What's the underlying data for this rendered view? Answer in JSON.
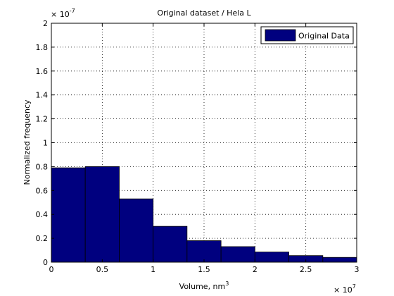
{
  "chart_data": {
    "type": "bar",
    "title": "Original dataset / Hela L",
    "xlabel": "Volume, nm",
    "xlabel_superscript": "3",
    "ylabel": "Normalized frequency",
    "x_multiplier": "× 10",
    "x_multiplier_exponent": "7",
    "y_multiplier": "× 10",
    "y_multiplier_exponent": "-7",
    "xlim": [
      0,
      3
    ],
    "ylim": [
      0,
      2
    ],
    "x_ticks": [
      0,
      0.5,
      1,
      1.5,
      2,
      2.5,
      3
    ],
    "x_tick_labels": [
      "0",
      "0.5",
      "1",
      "1.5",
      "2",
      "2.5",
      "3"
    ],
    "y_ticks": [
      0,
      0.2,
      0.4,
      0.6,
      0.8,
      1,
      1.2,
      1.4,
      1.6,
      1.8,
      2
    ],
    "y_tick_labels": [
      "0",
      "0.2",
      "0.4",
      "0.6",
      "0.8",
      "1",
      "1.2",
      "1.4",
      "1.6",
      "1.8",
      "2"
    ],
    "grid": true,
    "legend_position": "top-right",
    "bin_edges": [
      0,
      0.333,
      0.667,
      1.0,
      1.333,
      1.667,
      2.0,
      2.333,
      2.667,
      3.0
    ],
    "series": [
      {
        "name": "Original Data",
        "color": "#00007f",
        "values": [
          0.79,
          0.8,
          0.53,
          0.3,
          0.18,
          0.13,
          0.085,
          0.055,
          0.04
        ]
      }
    ]
  }
}
